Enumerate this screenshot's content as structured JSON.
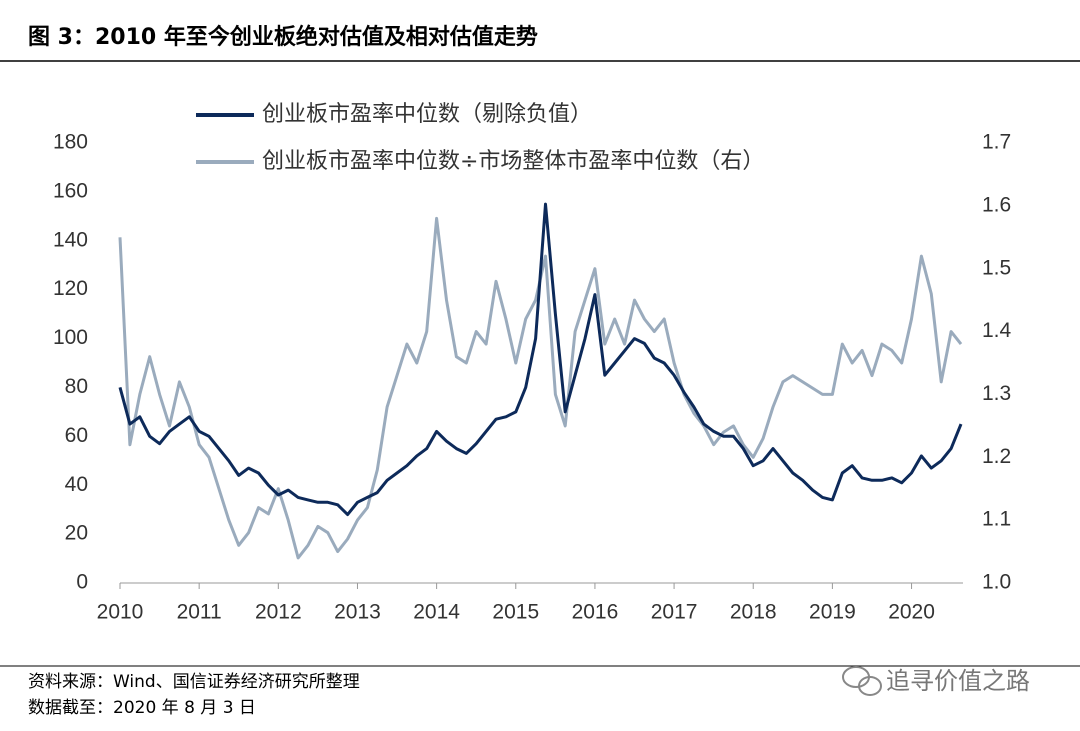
{
  "chart_data": {
    "type": "line",
    "title": "图 3：2010 年至今创业板绝对估值及相对估值走势",
    "source": "资料来源：Wind、国信证券经济研究所整理",
    "note": "数据截至：2020 年 8 月 3 日",
    "watermark": "追寻价值之路",
    "x": [
      2010,
      2010.125,
      2010.25,
      2010.375,
      2010.5,
      2010.625,
      2010.75,
      2010.875,
      2011,
      2011.125,
      2011.25,
      2011.375,
      2011.5,
      2011.625,
      2011.75,
      2011.875,
      2012,
      2012.125,
      2012.25,
      2012.375,
      2012.5,
      2012.625,
      2012.75,
      2012.875,
      2013,
      2013.125,
      2013.25,
      2013.375,
      2013.5,
      2013.625,
      2013.75,
      2013.875,
      2014,
      2014.125,
      2014.25,
      2014.375,
      2014.5,
      2014.625,
      2014.75,
      2014.875,
      2015,
      2015.125,
      2015.25,
      2015.375,
      2015.5,
      2015.625,
      2015.75,
      2015.875,
      2016,
      2016.125,
      2016.25,
      2016.375,
      2016.5,
      2016.625,
      2016.75,
      2016.875,
      2017,
      2017.125,
      2017.25,
      2017.375,
      2017.5,
      2017.625,
      2017.75,
      2017.875,
      2018,
      2018.125,
      2018.25,
      2018.375,
      2018.5,
      2018.625,
      2018.75,
      2018.875,
      2019,
      2019.125,
      2019.25,
      2019.375,
      2019.5,
      2019.625,
      2019.75,
      2019.875,
      2020,
      2020.125,
      2020.25,
      2020.375,
      2020.5,
      2020.625
    ],
    "series": [
      {
        "name": "创业板市盈率中位数（剔除负值）",
        "color": "#0d2a5a",
        "axis": "y",
        "values": [
          80,
          65,
          68,
          60,
          57,
          62,
          65,
          68,
          62,
          60,
          55,
          50,
          44,
          47,
          45,
          40,
          36,
          38,
          35,
          34,
          33,
          33,
          32,
          28,
          33,
          35,
          37,
          42,
          45,
          48,
          52,
          55,
          62,
          58,
          55,
          53,
          57,
          62,
          67,
          68,
          70,
          80,
          100,
          155,
          110,
          70,
          85,
          100,
          118,
          85,
          90,
          95,
          100,
          98,
          92,
          90,
          85,
          78,
          72,
          65,
          62,
          60,
          60,
          55,
          48,
          50,
          55,
          50,
          45,
          42,
          38,
          35,
          34,
          45,
          48,
          43,
          42,
          42,
          43,
          41,
          45,
          52,
          47,
          50,
          55,
          65
        ]
      },
      {
        "name": "创业板市盈率中位数÷市场整体市盈率中位数（右）",
        "color": "#9aabbd",
        "axis": "y2",
        "values": [
          1.55,
          1.22,
          1.3,
          1.36,
          1.3,
          1.25,
          1.32,
          1.28,
          1.22,
          1.2,
          1.15,
          1.1,
          1.06,
          1.08,
          1.12,
          1.11,
          1.15,
          1.1,
          1.04,
          1.06,
          1.09,
          1.08,
          1.05,
          1.07,
          1.1,
          1.12,
          1.18,
          1.28,
          1.33,
          1.38,
          1.35,
          1.4,
          1.58,
          1.45,
          1.36,
          1.35,
          1.4,
          1.38,
          1.48,
          1.42,
          1.35,
          1.42,
          1.45,
          1.52,
          1.3,
          1.25,
          1.4,
          1.45,
          1.5,
          1.38,
          1.42,
          1.38,
          1.45,
          1.42,
          1.4,
          1.42,
          1.35,
          1.3,
          1.27,
          1.25,
          1.22,
          1.24,
          1.25,
          1.22,
          1.2,
          1.23,
          1.28,
          1.32,
          1.33,
          1.32,
          1.31,
          1.3,
          1.3,
          1.38,
          1.35,
          1.37,
          1.33,
          1.38,
          1.37,
          1.35,
          1.42,
          1.52,
          1.46,
          1.32,
          1.4,
          1.38
        ]
      }
    ],
    "xlim": [
      2010,
      2020.65
    ],
    "xticks": [
      2010,
      2011,
      2012,
      2013,
      2014,
      2015,
      2016,
      2017,
      2018,
      2019,
      2020
    ],
    "ylim": [
      0,
      180
    ],
    "yticks": [
      0,
      20,
      40,
      60,
      80,
      100,
      120,
      140,
      160,
      180
    ],
    "y2lim": [
      1.0,
      1.7
    ],
    "y2ticks": [
      {
        "value": 1.0,
        "label": "1.0"
      },
      1.1,
      1.2,
      1.3,
      1.4,
      1.5,
      1.6,
      1.7
    ],
    "grid": false
  }
}
